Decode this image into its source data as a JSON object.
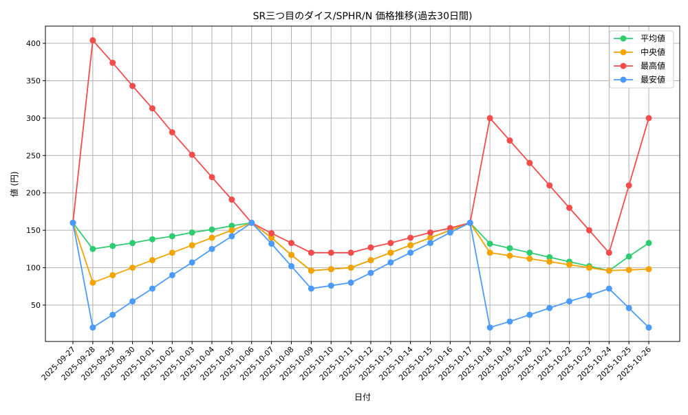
{
  "chart_data": {
    "type": "line",
    "title": "SR三つ目のダイス/SPHR/N 価格推移(過去30日間)",
    "xlabel": "日付",
    "ylabel": "値 (円)",
    "ylim": [
      1.3,
      423
    ],
    "yticks": [
      50,
      100,
      150,
      200,
      250,
      300,
      350,
      400
    ],
    "grid": true,
    "legend_position": "top-right",
    "categories": [
      "2025-09-27",
      "2025-09-28",
      "2025-09-29",
      "2025-09-30",
      "2025-10-01",
      "2025-10-02",
      "2025-10-03",
      "2025-10-04",
      "2025-10-05",
      "2025-10-06",
      "2025-10-07",
      "2025-10-08",
      "2025-10-09",
      "2025-10-10",
      "2025-10-11",
      "2025-10-12",
      "2025-10-13",
      "2025-10-14",
      "2025-10-15",
      "2025-10-16",
      "2025-10-17",
      "2025-10-18",
      "2025-10-19",
      "2025-10-20",
      "2025-10-21",
      "2025-10-22",
      "2025-10-23",
      "2025-10-24",
      "2025-10-25",
      "2025-10-26"
    ],
    "series": [
      {
        "name": "平均値",
        "color": "#2ecc71",
        "values": [
          160,
          125,
          129,
          133,
          138,
          142,
          147,
          151,
          156,
          160,
          140,
          117,
          96,
          98,
          100,
          110,
          120,
          130,
          140,
          150,
          160,
          132,
          126,
          120,
          114,
          108,
          102,
          96,
          115,
          133
        ]
      },
      {
        "name": "中央値",
        "color": "#f5a300",
        "values": [
          160,
          80,
          90,
          100,
          110,
          120,
          130,
          140,
          150,
          160,
          140,
          117,
          96,
          98,
          100,
          110,
          120,
          130,
          140,
          150,
          160,
          120,
          116,
          112,
          108,
          104,
          100,
          96,
          97,
          98
        ]
      },
      {
        "name": "最高値",
        "color": "#f44b4b",
        "values": [
          160,
          404,
          374,
          343,
          313,
          281,
          251,
          221,
          191,
          160,
          146,
          133,
          120,
          120,
          120,
          127,
          133,
          140,
          147,
          153,
          160,
          300,
          270,
          240,
          210,
          180,
          150,
          120,
          210,
          300
        ]
      },
      {
        "name": "最安値",
        "color": "#4b9bff",
        "values": [
          160,
          20,
          37,
          55,
          72,
          90,
          107,
          125,
          142,
          160,
          132,
          102,
          72,
          76,
          80,
          93,
          107,
          120,
          133,
          147,
          160,
          20,
          28,
          37,
          46,
          55,
          63,
          72,
          46,
          20
        ]
      }
    ]
  }
}
